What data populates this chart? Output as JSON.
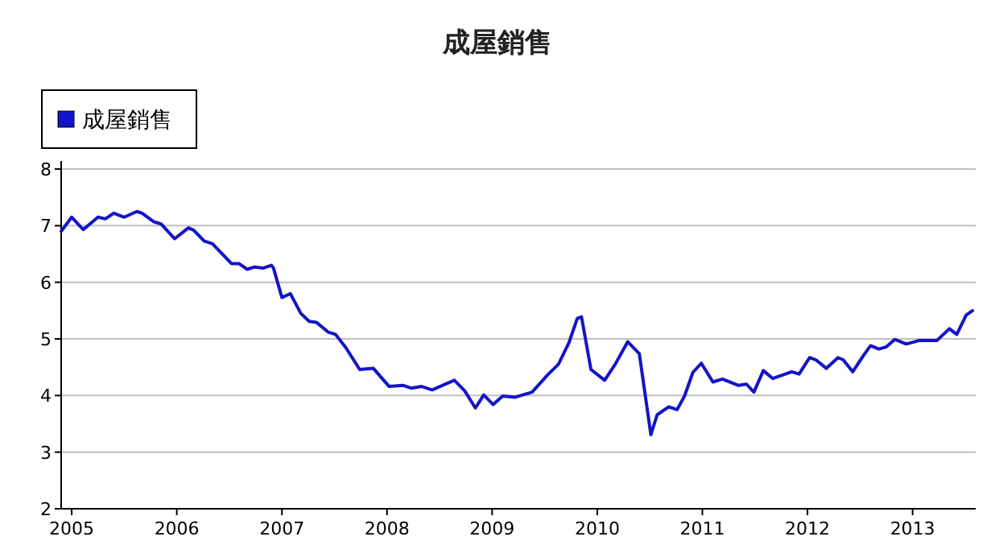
{
  "chart_data": {
    "type": "line",
    "title": "成屋銷售",
    "xlim": [
      2004.9,
      2013.6
    ],
    "ylim": [
      2,
      8
    ],
    "xticks": [
      2005,
      2006,
      2007,
      2008,
      2009,
      2010,
      2011,
      2012,
      2013
    ],
    "yticks": [
      2,
      3,
      4,
      5,
      6,
      7,
      8
    ],
    "grid": "y",
    "legend": "top left",
    "x": [
      2004.9,
      2005.0,
      2005.11,
      2005.25,
      2005.32,
      2005.4,
      2005.5,
      2005.62,
      2005.67,
      2005.78,
      2005.85,
      2005.98,
      2006.11,
      2006.16,
      2006.26,
      2006.34,
      2006.52,
      2006.59,
      2006.67,
      2006.74,
      2006.82,
      2006.9,
      2006.92,
      2007.0,
      2007.08,
      2007.18,
      2007.26,
      2007.33,
      2007.44,
      2007.51,
      2007.61,
      2007.74,
      2007.87,
      2008.02,
      2008.15,
      2008.23,
      2008.33,
      2008.43,
      2008.53,
      2008.64,
      2008.74,
      2008.84,
      2008.92,
      2009.01,
      2009.1,
      2009.22,
      2009.38,
      2009.53,
      2009.63,
      2009.73,
      2009.81,
      2009.85,
      2009.94,
      2010.07,
      2010.17,
      2010.29,
      2010.4,
      2010.51,
      2010.57,
      2010.68,
      2010.76,
      2010.83,
      2010.91,
      2010.99,
      2011.1,
      2011.19,
      2011.34,
      2011.42,
      2011.49,
      2011.58,
      2011.67,
      2011.85,
      2011.92,
      2012.02,
      2012.08,
      2012.18,
      2012.29,
      2012.34,
      2012.43,
      2012.53,
      2012.6,
      2012.68,
      2012.75,
      2012.83,
      2012.94,
      2013.06,
      2013.23,
      2013.35,
      2013.42,
      2013.51,
      2013.57
    ],
    "series": [
      {
        "name": "成屋銷售",
        "color": "#1414c8",
        "values": [
          6.9,
          7.15,
          6.93,
          7.15,
          7.12,
          7.22,
          7.15,
          7.25,
          7.22,
          7.07,
          7.03,
          6.77,
          6.96,
          6.92,
          6.73,
          6.68,
          6.33,
          6.33,
          6.23,
          6.27,
          6.25,
          6.3,
          6.25,
          5.73,
          5.8,
          5.45,
          5.31,
          5.29,
          5.12,
          5.08,
          4.84,
          4.46,
          4.48,
          4.16,
          4.18,
          4.13,
          4.16,
          4.1,
          4.18,
          4.27,
          4.08,
          3.78,
          4.01,
          3.84,
          3.99,
          3.97,
          4.06,
          4.37,
          4.55,
          4.93,
          5.36,
          5.39,
          4.46,
          4.27,
          4.55,
          4.95,
          4.74,
          3.31,
          3.66,
          3.8,
          3.75,
          3.99,
          4.41,
          4.57,
          4.24,
          4.29,
          4.18,
          4.2,
          4.06,
          4.44,
          4.3,
          4.42,
          4.38,
          4.67,
          4.63,
          4.48,
          4.67,
          4.63,
          4.42,
          4.7,
          4.88,
          4.82,
          4.86,
          4.99,
          4.91,
          4.97,
          4.97,
          5.18,
          5.08,
          5.42,
          5.5
        ]
      }
    ]
  }
}
